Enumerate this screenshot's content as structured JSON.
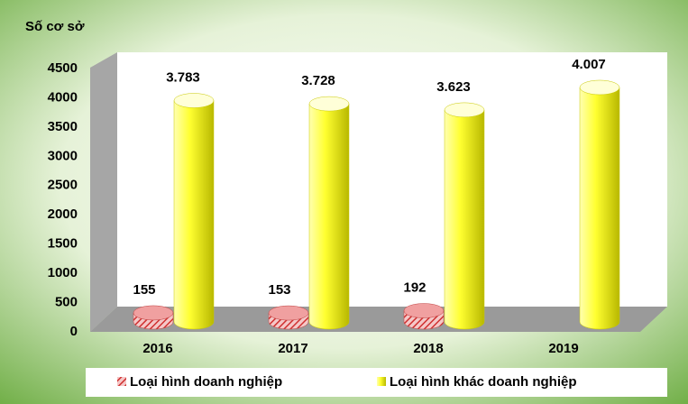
{
  "chart_data": {
    "type": "bar",
    "y_label": "Số cơ sở",
    "categories": [
      "2016",
      "2017",
      "2018",
      "2019"
    ],
    "series": [
      {
        "name": "Loại hình doanh nghiệp",
        "color": "#e04a4a",
        "values": [
          155,
          153,
          192,
          null
        ]
      },
      {
        "name": "Loại hình khác doanh nghiệp",
        "color": "#ffff00",
        "values": [
          3783,
          3728,
          3623,
          4007
        ],
        "value_labels": [
          "3.783",
          "3.728",
          "3.623",
          "4.007"
        ]
      }
    ],
    "ylim": [
      0,
      4500
    ],
    "yticks": [
      0,
      500,
      1000,
      1500,
      2000,
      2500,
      3000,
      3500,
      4000,
      4500
    ]
  }
}
